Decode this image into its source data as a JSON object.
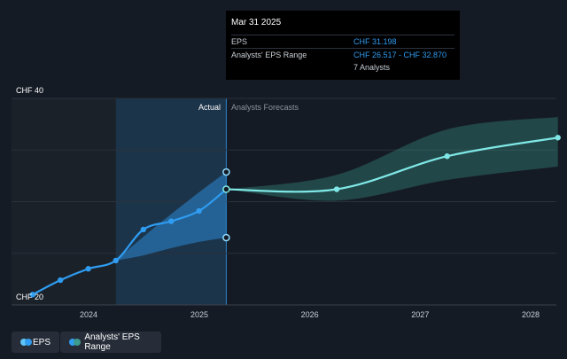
{
  "chart_data": {
    "type": "line",
    "y_top_label": "CHF 40",
    "y_bottom_label": "CHF 20",
    "ylim": [
      20,
      40
    ],
    "x_ticks": [
      "2024",
      "2025",
      "2026",
      "2027",
      "2028"
    ],
    "actual_label": "Actual",
    "forecast_label": "Analysts Forecasts",
    "series": [
      {
        "name": "EPS",
        "color": "#2f9cf1",
        "points": [
          [
            "2023-06-30",
            21.0
          ],
          [
            "2023-09-30",
            22.4
          ],
          [
            "2023-12-31",
            23.5
          ],
          [
            "2024-03-31",
            24.3
          ],
          [
            "2024-06-30",
            27.3
          ],
          [
            "2024-09-30",
            28.1
          ],
          [
            "2024-12-31",
            29.1
          ],
          [
            "2025-03-31",
            31.198
          ]
        ]
      },
      {
        "name": "EPS forecast",
        "color": "#7fe8e6",
        "points": [
          [
            "2025-03-31",
            31.198
          ],
          [
            "2026-03-31",
            31.2
          ],
          [
            "2027-03-31",
            34.4
          ],
          [
            "2028-03-31",
            36.2
          ]
        ]
      }
    ],
    "actual_range": {
      "name": "Analysts' EPS Range",
      "color": "#2f9cf1",
      "low": [
        [
          "2024-03-31",
          24.3
        ],
        [
          "2024-06-30",
          24.8
        ],
        [
          "2024-09-30",
          25.5
        ],
        [
          "2024-12-31",
          26.1
        ],
        [
          "2025-03-31",
          26.517
        ]
      ],
      "high": [
        [
          "2024-03-31",
          24.3
        ],
        [
          "2024-06-30",
          26.6
        ],
        [
          "2024-09-30",
          28.8
        ],
        [
          "2024-12-31",
          30.9
        ],
        [
          "2025-03-31",
          32.87
        ]
      ]
    },
    "forecast_range": {
      "name": "Analysts' EPS Range",
      "color": "#3c9a8e",
      "low": [
        [
          "2025-03-31",
          31.2
        ],
        [
          "2026-03-31",
          30.1
        ],
        [
          "2027-03-31",
          32.1
        ],
        [
          "2028-03-31",
          33.4
        ]
      ],
      "high": [
        [
          "2025-03-31",
          31.2
        ],
        [
          "2026-03-31",
          32.6
        ],
        [
          "2027-03-31",
          37.0
        ],
        [
          "2028-03-31",
          38.2
        ]
      ]
    }
  },
  "tooltip": {
    "date": "Mar 31 2025",
    "rows": [
      {
        "label": "EPS",
        "value": "CHF 31.198"
      },
      {
        "label": "Analysts' EPS Range",
        "value": "CHF 26.517 - CHF 32.870"
      },
      {
        "label": "",
        "value": "7 Analysts"
      }
    ]
  },
  "legend": {
    "eps_label": "EPS",
    "range_label": "Analysts' EPS Range"
  },
  "colors": {
    "background": "#151b24",
    "eps": "#2f9cf1",
    "forecast": "#7fe8e6",
    "forecast_band": "#3c9a8e"
  }
}
